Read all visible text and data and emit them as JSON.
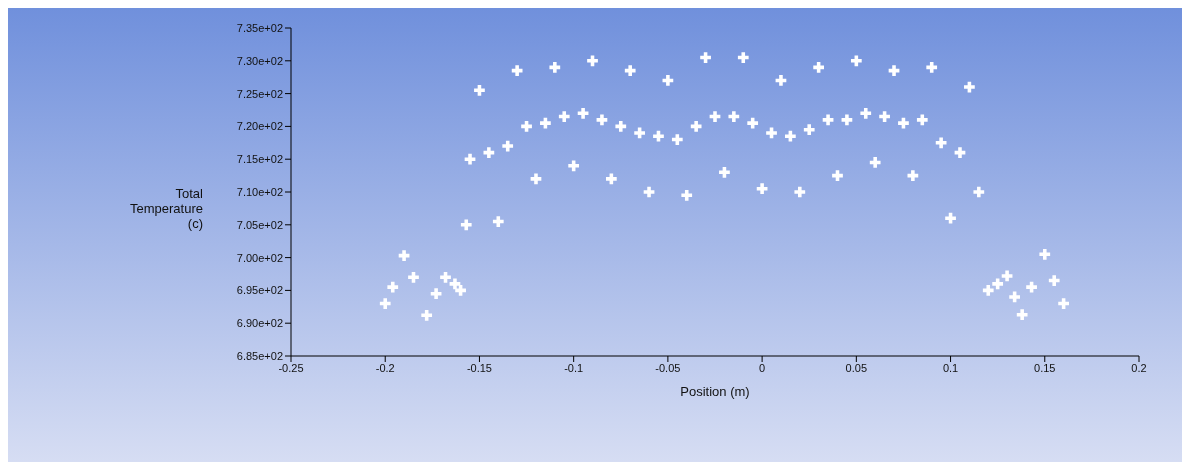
{
  "chart_data": {
    "type": "scatter",
    "xlabel": "Position (m)",
    "ylabel": "Total Temperature (c)",
    "marker": "cross",
    "xlim": [
      -0.25,
      0.2
    ],
    "xticks": [
      -0.25,
      -0.2,
      -0.15,
      -0.1,
      -0.05,
      0,
      0.05,
      0.1,
      0.15,
      0.2
    ],
    "ylim": [
      685,
      735
    ],
    "yticks": [
      {
        "value": 685,
        "label": "6.85e+02"
      },
      {
        "value": 690,
        "label": "6.90e+02"
      },
      {
        "value": 695,
        "label": "6.95e+02"
      },
      {
        "value": 700,
        "label": "7.00e+02"
      },
      {
        "value": 705,
        "label": "7.05e+02"
      },
      {
        "value": 710,
        "label": "7.10e+02"
      },
      {
        "value": 715,
        "label": "7.15e+02"
      },
      {
        "value": 720,
        "label": "7.20e+02"
      },
      {
        "value": 725,
        "label": "7.25e+02"
      },
      {
        "value": 730,
        "label": "7.30e+02"
      },
      {
        "value": 735,
        "label": "7.35e+02"
      }
    ],
    "x": [
      -0.2,
      -0.196,
      -0.19,
      -0.185,
      -0.178,
      -0.173,
      -0.168,
      -0.163,
      -0.16,
      -0.157,
      -0.155,
      -0.15,
      -0.145,
      -0.14,
      -0.135,
      -0.13,
      -0.125,
      -0.12,
      -0.115,
      -0.11,
      -0.105,
      -0.1,
      -0.095,
      -0.09,
      -0.085,
      -0.08,
      -0.075,
      -0.07,
      -0.065,
      -0.06,
      -0.055,
      -0.05,
      -0.045,
      -0.04,
      -0.035,
      -0.03,
      -0.025,
      -0.02,
      -0.015,
      -0.01,
      -0.005,
      0,
      0.005,
      0.01,
      0.015,
      0.02,
      0.025,
      0.03,
      0.035,
      0.04,
      0.045,
      0.05,
      0.055,
      0.06,
      0.065,
      0.07,
      0.075,
      0.08,
      0.085,
      0.09,
      0.095,
      0.1,
      0.105,
      0.11,
      0.115,
      0.12,
      0.125,
      0.13,
      0.134,
      0.138,
      0.143,
      0.15,
      0.155,
      0.16
    ],
    "series": [
      {
        "color": "#ffffff",
        "values": [
          693,
          695.5,
          700.3,
          697,
          691.2,
          694.5,
          697,
          696,
          695,
          705,
          715,
          725.5,
          716,
          705.5,
          717,
          728.5,
          720,
          712,
          720.5,
          729,
          721.5,
          714,
          722,
          730,
          721,
          712,
          720,
          728.5,
          719,
          710,
          718.5,
          727,
          718,
          709.5,
          720,
          730.5,
          721.5,
          713,
          721.5,
          730.5,
          720.5,
          710.5,
          719,
          727,
          718.5,
          710,
          719.5,
          729,
          721,
          712.5,
          721,
          730,
          722,
          714.5,
          721.5,
          728.5,
          720.5,
          712.5,
          721,
          729,
          717.5,
          706,
          716,
          726,
          710,
          695,
          696,
          697.2,
          694,
          691.3,
          695.5,
          700.5,
          696.5,
          693
        ]
      }
    ]
  }
}
